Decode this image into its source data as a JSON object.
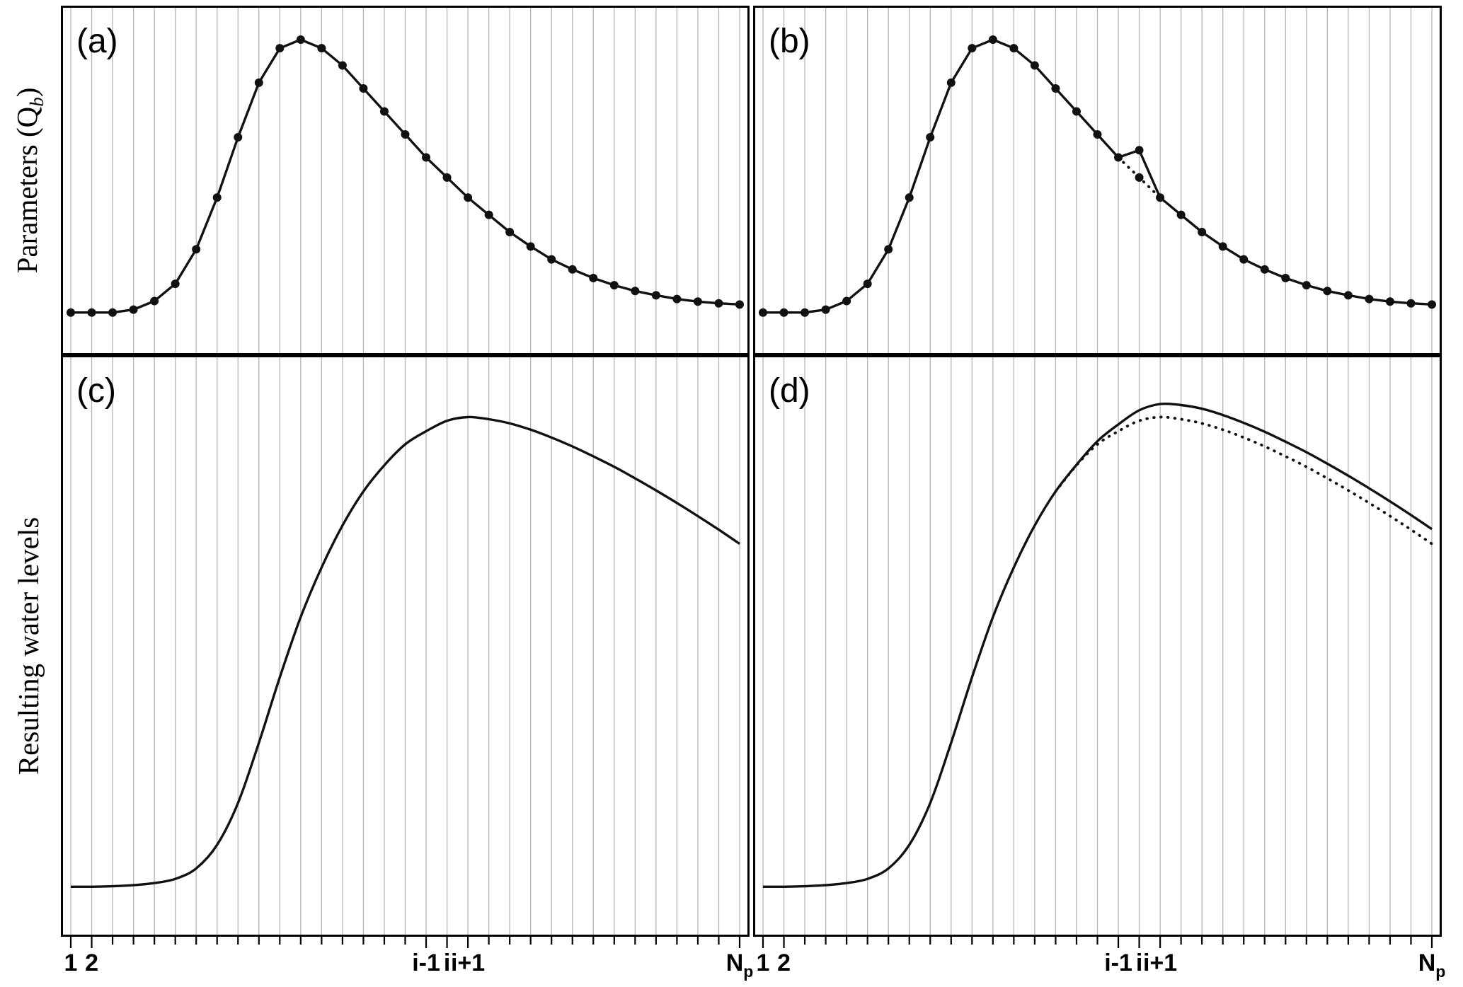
{
  "figure": {
    "background": "#ffffff",
    "border_color": "#000000",
    "grid_color": "#b4b4b4",
    "curve_color": "#111111",
    "y_axis_labels": {
      "top": {
        "pre": "Parameters (Q",
        "sub": "b",
        "post": ")"
      },
      "bottom": "Resulting water levels"
    }
  },
  "chart_data": {
    "type": "line",
    "n_points": 33,
    "xlabel": "",
    "ylabel_top": "Parameters (Qb)",
    "ylabel_bottom": "Resulting water levels",
    "ylim": [
      0,
      1.05
    ],
    "grid": "vertical-only",
    "legend": "none",
    "x_tick_labels": [
      {
        "text": "1",
        "index": 1
      },
      {
        "text": "2",
        "index": 2
      },
      {
        "text": "i-1",
        "index": 18
      },
      {
        "text": "i",
        "index": 19
      },
      {
        "text": "i+1",
        "index": 20
      },
      {
        "text": "N",
        "sub": "p",
        "index": 33
      }
    ],
    "panels": [
      {
        "id": "a",
        "label": "(a)",
        "row": 0,
        "col": 0,
        "description": "base parameter hydrograph",
        "series": [
          {
            "name": "base-parameters",
            "style": "solid",
            "smooth": false,
            "markers": true,
            "values": [
              0.05,
              0.05,
              0.05,
              0.06,
              0.09,
              0.15,
              0.27,
              0.45,
              0.66,
              0.85,
              0.97,
              1.0,
              0.97,
              0.91,
              0.83,
              0.75,
              0.67,
              0.59,
              0.52,
              0.45,
              0.39,
              0.33,
              0.28,
              0.235,
              0.2,
              0.17,
              0.145,
              0.125,
              0.11,
              0.097,
              0.088,
              0.082,
              0.078
            ]
          }
        ]
      },
      {
        "id": "b",
        "label": "(b)",
        "row": 0,
        "col": 1,
        "description": "parameter hydrograph with point i perturbed upward; dotted = original segment",
        "series": [
          {
            "name": "original-parameters-segment",
            "style": "dotted",
            "smooth": false,
            "markers": false,
            "x_start": 18,
            "marker_indices": [
              19
            ],
            "values": [
              0.59,
              0.52,
              0.45
            ]
          },
          {
            "name": "perturbed-parameters",
            "style": "solid",
            "smooth": false,
            "markers": true,
            "values": [
              0.05,
              0.05,
              0.05,
              0.06,
              0.09,
              0.15,
              0.27,
              0.45,
              0.66,
              0.85,
              0.97,
              1.0,
              0.97,
              0.91,
              0.83,
              0.75,
              0.67,
              0.59,
              0.615,
              0.45,
              0.39,
              0.33,
              0.28,
              0.235,
              0.2,
              0.17,
              0.145,
              0.125,
              0.11,
              0.097,
              0.088,
              0.082,
              0.078
            ]
          }
        ]
      },
      {
        "id": "c",
        "label": "(c)",
        "row": 1,
        "col": 0,
        "description": "resulting water levels for base parameters",
        "series": [
          {
            "name": "water-levels",
            "style": "solid",
            "smooth": true,
            "markers": false,
            "values": [
              0.055,
              0.055,
              0.056,
              0.058,
              0.062,
              0.07,
              0.09,
              0.135,
              0.215,
              0.33,
              0.455,
              0.57,
              0.665,
              0.745,
              0.81,
              0.86,
              0.9,
              0.925,
              0.945,
              0.952,
              0.948,
              0.94,
              0.928,
              0.913,
              0.896,
              0.877,
              0.857,
              0.835,
              0.812,
              0.788,
              0.763,
              0.737,
              0.71
            ]
          }
        ]
      },
      {
        "id": "d",
        "label": "(d)",
        "row": 1,
        "col": 1,
        "description": "resulting water levels: solid = perturbed run, dotted = original run",
        "series": [
          {
            "name": "original-water-levels",
            "style": "dotted",
            "smooth": true,
            "markers": false,
            "x_start": 15,
            "values": [
              0.81,
              0.86,
              0.9,
              0.925,
              0.945,
              0.952,
              0.948,
              0.94,
              0.928,
              0.913,
              0.896,
              0.877,
              0.857,
              0.835,
              0.812,
              0.788,
              0.763,
              0.737,
              0.71
            ]
          },
          {
            "name": "perturbed-water-levels",
            "style": "solid",
            "smooth": true,
            "markers": false,
            "values": [
              0.055,
              0.055,
              0.056,
              0.058,
              0.062,
              0.07,
              0.09,
              0.135,
              0.215,
              0.33,
              0.455,
              0.57,
              0.665,
              0.745,
              0.81,
              0.861,
              0.906,
              0.938,
              0.965,
              0.977,
              0.975,
              0.968,
              0.956,
              0.941,
              0.924,
              0.905,
              0.885,
              0.863,
              0.84,
              0.816,
              0.791,
              0.765,
              0.738
            ]
          }
        ]
      }
    ]
  }
}
